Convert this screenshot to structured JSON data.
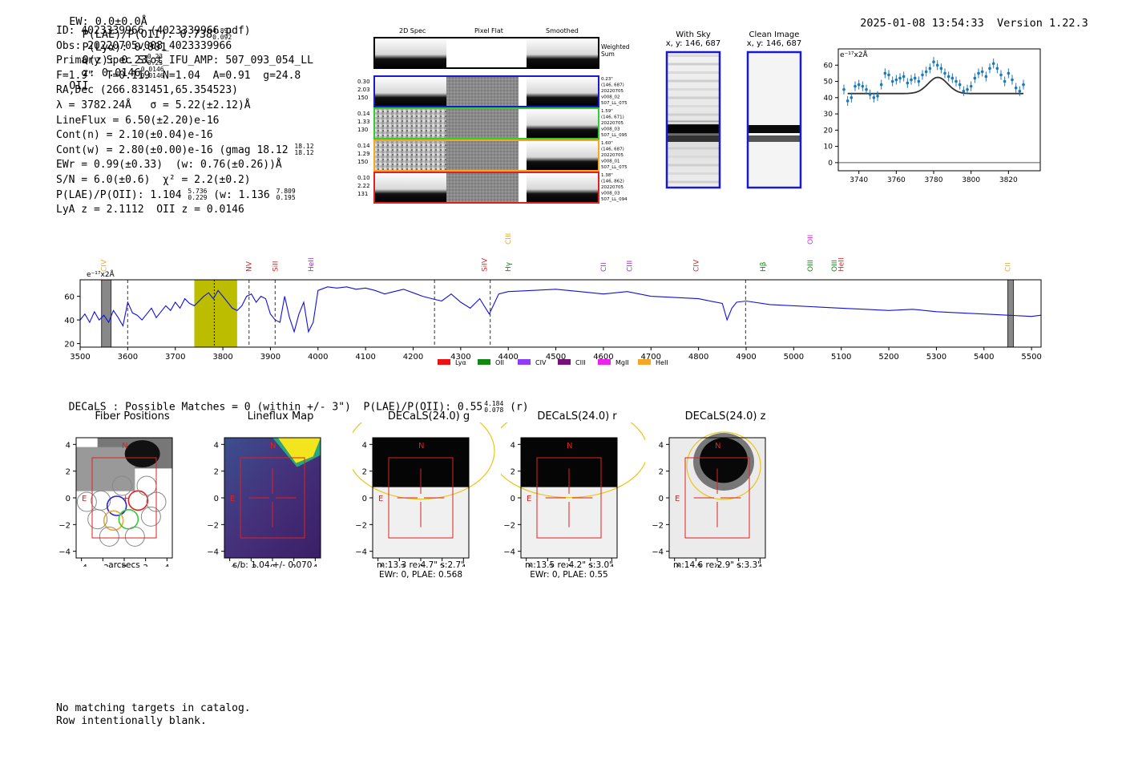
{
  "header": {
    "ew_text": "EW: 0.0±0.0Å",
    "plae_label": "P(LAE)/P(OII): 0.738",
    "plae_hi": "4.891",
    "plae_lo": "0.092",
    "plya_text": "P(Lyα): 0.001",
    "q_label": "Q(z): 0.23",
    "q_hi": "0.23",
    "q_lo": "0.23",
    "z_label": "z: 0.0146",
    "z_hi": "0.0146",
    "z_lo": "0.0146",
    "z_line": "OII",
    "datetime": "2025-01-08 13:54:33",
    "version": "Version 1.22.3"
  },
  "info": {
    "id": "ID: 4023339966 (4023339966.pdf)",
    "obs": "Obs: 20220705v008_4023339966",
    "spec": "Primary Spec_Slot_IFU_AMP: 507_093_054_LL",
    "fwhm": "F=1.9\"  T=0.119  N=1.04  A=0.91  g=24.8",
    "radec": "RA,Dec (266.831451,65.354523)",
    "lambda": "λ = 3782.24Å   σ = 5.22(±2.12)Å",
    "lineflux": "LineFlux = 6.50(±2.20)e-16",
    "contn": "Cont(n) = 2.10(±0.04)e-16",
    "contw": "Cont(w) = 2.80(±0.00)e-16 (gmag 18.12",
    "contw_hi": "18.12",
    "contw_lo": "18.12",
    "ewr": "EWr = 0.99(±0.33)  (w: 0.76(±0.26))Å",
    "sn": "S/N = 6.0(±0.6)  χ² = 2.2(±0.2)",
    "plae2": "P(LAE)/P(OII): 1.104",
    "plae2_hi": "5.736",
    "plae2_lo": "0.229",
    "plae2_w": "(w: 1.136",
    "plae2_w_hi": "7.809",
    "plae2_w_lo": "0.195",
    "lya": "LyA z = 2.1112  OII z = 0.0146"
  },
  "cutouts": {
    "col_2d": "2D Spec",
    "col_flat": "Pixel Flat",
    "col_smooth": "Smoothed",
    "weighted_label": "Weighted Sum",
    "rows": [
      {
        "color": "#1a1acc",
        "w1": "0.30",
        "w2": "2.03",
        "w3": "150",
        "d1": "0.23\"",
        "d2": "(146, 687)",
        "d3": "20220705",
        "d4": "v008_02",
        "d5": "507_LL_075"
      },
      {
        "color": "#33cc33",
        "w1": "0.14",
        "w2": "1.33",
        "w3": "130",
        "d1": "1.59\"",
        "d2": "(146, 671)",
        "d3": "20220705",
        "d4": "v008_03",
        "d5": "507_LL_095"
      },
      {
        "color": "#f5a623",
        "w1": "0.14",
        "w2": "1.29",
        "w3": "150",
        "d1": "1.60\"",
        "d2": "(146, 687)",
        "d3": "20220705",
        "d4": "v008_01",
        "d5": "507_LL_075"
      },
      {
        "color": "#dd2222",
        "w1": "0.10",
        "w2": "2.22",
        "w3": "131",
        "d1": "1.38\"",
        "d2": "(146, 862)",
        "d3": "20220705",
        "d4": "v008_03",
        "d5": "507_LL_094"
      }
    ],
    "with_sky_title": "With Sky",
    "with_sky_coord": "x, y: 146, 687",
    "clean_title": "Clean Image",
    "clean_coord": "x, y: 146, 687"
  },
  "zoom_chart": {
    "type": "scatter",
    "unit_label": "e⁻¹⁷x2Å",
    "xlim": [
      3729,
      3837
    ],
    "ylim": [
      -5,
      70
    ],
    "xticks": [
      3740,
      3760,
      3780,
      3800,
      3820
    ],
    "yticks": [
      0,
      10,
      20,
      30,
      40,
      50,
      60
    ],
    "x": [
      3732,
      3734,
      3736,
      3738,
      3740,
      3742,
      3744,
      3746,
      3748,
      3750,
      3752,
      3754,
      3756,
      3758,
      3760,
      3762,
      3764,
      3766,
      3768,
      3770,
      3772,
      3774,
      3776,
      3778,
      3780,
      3782,
      3784,
      3786,
      3788,
      3790,
      3792,
      3794,
      3796,
      3798,
      3800,
      3802,
      3804,
      3806,
      3808,
      3810,
      3812,
      3814,
      3816,
      3818,
      3820,
      3822,
      3824,
      3826,
      3828
    ],
    "y": [
      45,
      38,
      40,
      47,
      48,
      47,
      45,
      42,
      40,
      41,
      48,
      55,
      54,
      50,
      51,
      52,
      53,
      49,
      51,
      52,
      50,
      54,
      56,
      58,
      62,
      60,
      58,
      55,
      53,
      52,
      50,
      48,
      44,
      45,
      47,
      52,
      55,
      56,
      53,
      58,
      61,
      58,
      54,
      50,
      55,
      51,
      46,
      44,
      48
    ],
    "err": 3,
    "model_baseline": 42.5,
    "model_peak": 52.5,
    "model_center": 3782.24,
    "model_sigma": 5.22
  },
  "full_spectrum": {
    "type": "line",
    "unit_label": "e⁻¹⁷x2Å",
    "xlim": [
      3500,
      5520
    ],
    "ylim": [
      17,
      74
    ],
    "xticks": [
      3500,
      3600,
      3700,
      3800,
      3900,
      4000,
      4100,
      4200,
      4300,
      4400,
      4500,
      4600,
      4700,
      4800,
      4900,
      5000,
      5100,
      5200,
      5300,
      5400,
      5500
    ],
    "yticks": [
      20,
      40,
      60
    ],
    "x": [
      3500,
      3510,
      3520,
      3530,
      3540,
      3550,
      3560,
      3570,
      3580,
      3590,
      3600,
      3610,
      3620,
      3630,
      3640,
      3650,
      3660,
      3670,
      3680,
      3690,
      3700,
      3710,
      3720,
      3730,
      3740,
      3750,
      3760,
      3770,
      3780,
      3790,
      3800,
      3810,
      3820,
      3830,
      3840,
      3850,
      3860,
      3870,
      3880,
      3890,
      3900,
      3910,
      3920,
      3930,
      3940,
      3950,
      3960,
      3970,
      3980,
      3990,
      4000,
      4020,
      4040,
      4060,
      4080,
      4100,
      4120,
      4140,
      4160,
      4180,
      4200,
      4220,
      4240,
      4260,
      4280,
      4300,
      4320,
      4340,
      4360,
      4380,
      4400,
      4450,
      4500,
      4550,
      4600,
      4650,
      4700,
      4750,
      4800,
      4850,
      4860,
      4870,
      4880,
      4900,
      4950,
      5000,
      5050,
      5100,
      5150,
      5200,
      5250,
      5300,
      5350,
      5400,
      5450,
      5500,
      5520
    ],
    "y": [
      40,
      45,
      38,
      47,
      40,
      44,
      38,
      48,
      42,
      35,
      55,
      46,
      44,
      40,
      45,
      50,
      42,
      47,
      52,
      48,
      55,
      50,
      58,
      54,
      52,
      56,
      60,
      63,
      58,
      65,
      60,
      55,
      50,
      48,
      52,
      60,
      62,
      55,
      60,
      58,
      45,
      40,
      38,
      60,
      42,
      30,
      45,
      55,
      30,
      38,
      65,
      68,
      67,
      68,
      66,
      67,
      65,
      62,
      64,
      66,
      63,
      60,
      58,
      56,
      62,
      55,
      50,
      58,
      45,
      62,
      64,
      65,
      66,
      64,
      62,
      64,
      60,
      59,
      58,
      54,
      40,
      50,
      55,
      56,
      53,
      52,
      51,
      50,
      49,
      48,
      49,
      47,
      46,
      45,
      44,
      43,
      44
    ],
    "shaded_region": [
      3740,
      3830
    ],
    "hatched_regions": [
      [
        3545,
        3565
      ],
      [
        5450,
        5462
      ]
    ],
    "dashed_lines": [
      3600,
      3855,
      3910,
      4245,
      4362,
      4899
    ],
    "dotted_line": 3782,
    "line_markers": [
      {
        "label": "CIV",
        "wave": 3550,
        "color": "#f5a623",
        "row": 1
      },
      {
        "label": "NV",
        "wave": 3855,
        "color": "#dd2222",
        "row": 1
      },
      {
        "label": "SiII",
        "wave": 3910,
        "color": "#dd2222",
        "row": 1
      },
      {
        "label": "HeII",
        "wave": 3985,
        "color": "#9933cc",
        "row": 1
      },
      {
        "label": "SiIV",
        "wave": 4350,
        "color": "#dd2222",
        "row": 1
      },
      {
        "label": "CIII",
        "wave": 4400,
        "color": "#f5a623",
        "row": 0
      },
      {
        "label": "Hγ",
        "wave": 4400,
        "color": "#118811",
        "row": 1
      },
      {
        "label": "CII",
        "wave": 4600,
        "color": "#9933cc",
        "row": 1
      },
      {
        "label": "CIII",
        "wave": 4655,
        "color": "#9933cc",
        "row": 1
      },
      {
        "label": "CIV",
        "wave": 4795,
        "color": "#dd2222",
        "row": 1
      },
      {
        "label": "Hβ",
        "wave": 4935,
        "color": "#118811",
        "row": 1
      },
      {
        "label": "OII",
        "wave": 5035,
        "color": "#ee22ee",
        "row": 0
      },
      {
        "label": "OIII",
        "wave": 5035,
        "color": "#118811",
        "row": 1
      },
      {
        "label": "OIII",
        "wave": 5085,
        "color": "#118811",
        "row": 1
      },
      {
        "label": "HeII",
        "wave": 5100,
        "color": "#dd2222",
        "row": 1
      },
      {
        "label": "CII",
        "wave": 5450,
        "color": "#f5a623",
        "row": 1
      }
    ],
    "legend": [
      {
        "label": "Lyα",
        "color": "#ee1111"
      },
      {
        "label": "OII",
        "color": "#118811"
      },
      {
        "label": "CIV",
        "color": "#8e3cf7"
      },
      {
        "label": "CIII",
        "color": "#771177"
      },
      {
        "label": "MgII",
        "color": "#ee22ee"
      },
      {
        "label": "HeII",
        "color": "#f5a623"
      }
    ]
  },
  "decals": {
    "summary": "DECaLS : Possible Matches = 0 (within +/- 3\")  P(LAE)/P(OII): 0.55",
    "summary_hi": "4.184",
    "summary_lo": "0.078",
    "summary_band": "(r)",
    "ticks": [
      "−4",
      "−2",
      "0",
      "2",
      "4"
    ],
    "yticks": [
      "4",
      "2",
      "0",
      "−2",
      "−4"
    ],
    "north": "N",
    "east": "E",
    "panels": [
      {
        "title": "Fiber Positions",
        "caption1": "arcsecs",
        "caption2": ""
      },
      {
        "title": "Lineflux Map",
        "caption1": "s/b: 1.04 +/- 0.070",
        "caption2": ""
      },
      {
        "title": "DECaLS(24.0) g",
        "caption1": "m:13.3  re:4.7\"  s:2.7\"",
        "caption2": "EWr: 0, PLAE: 0.568"
      },
      {
        "title": "DECaLS(24.0) r",
        "caption1": "m:13.5  re:4.2\"  s:3.0\"",
        "caption2": "EWr: 0, PLAE: 0.55"
      },
      {
        "title": "DECaLS(24.0) z",
        "caption1": "m:14.6  re:2.9\"  s:3.3\"",
        "caption2": ""
      }
    ]
  },
  "footer": {
    "line1": "No matching targets in catalog.",
    "line2": "Row intentionally blank."
  }
}
